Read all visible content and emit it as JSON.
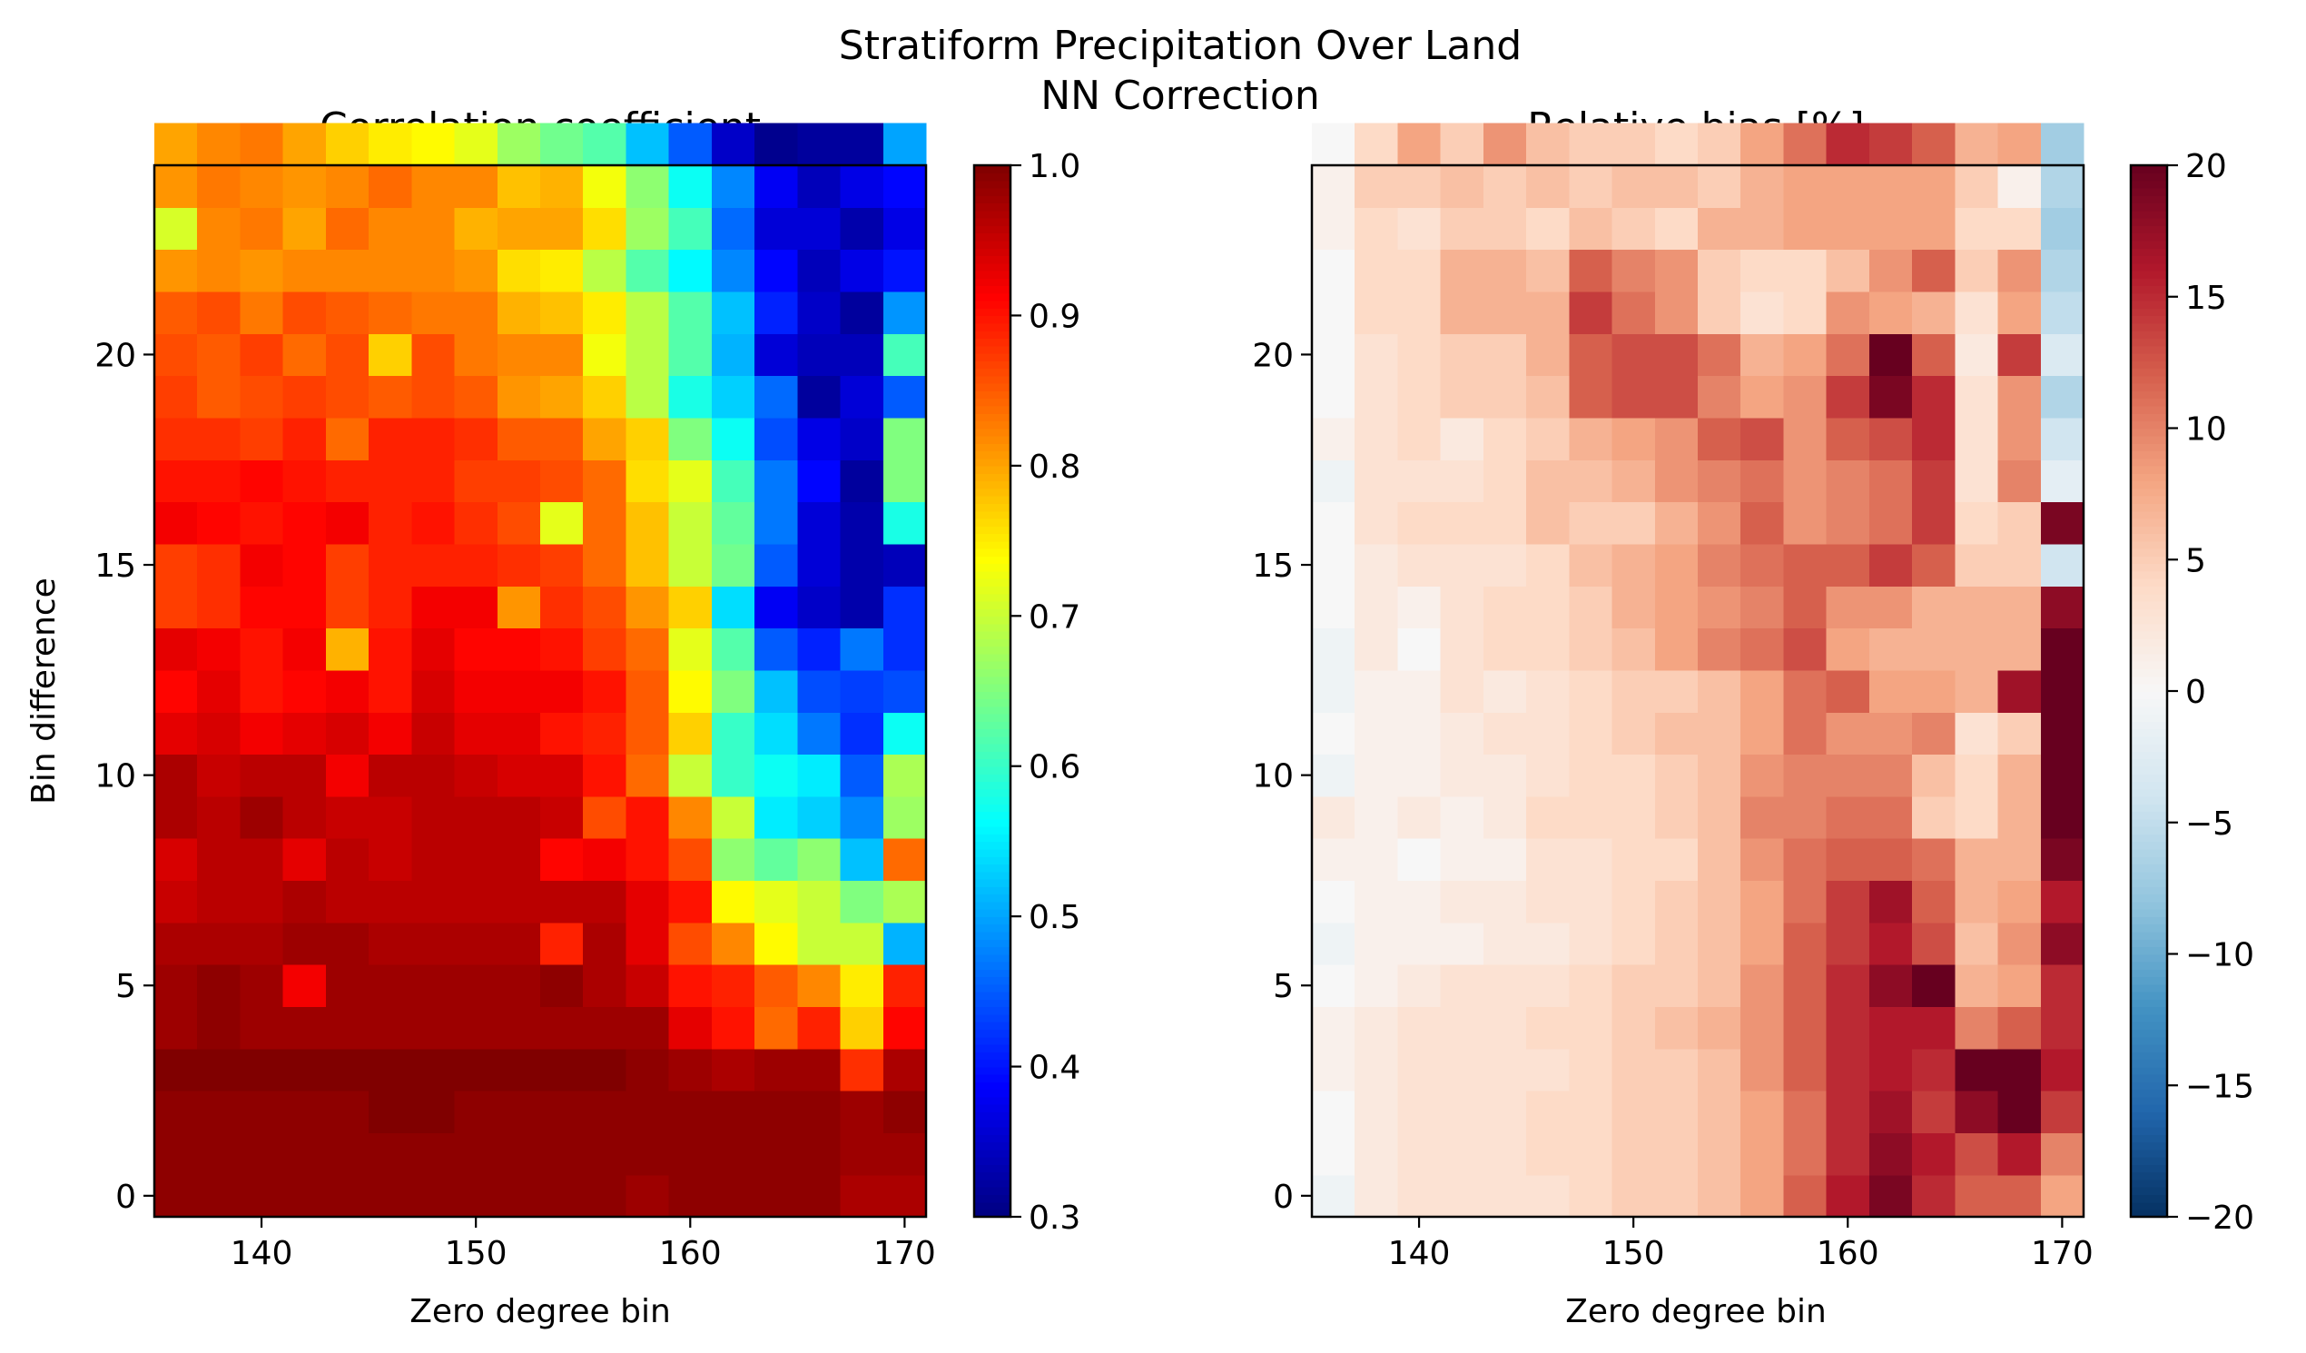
{
  "figure": {
    "title": "Stratiform Precipitation Over Land",
    "subtitle": "NN Correction"
  },
  "chart_data": [
    {
      "type": "heatmap",
      "title": "Correlation coefficient",
      "xlabel": "Zero degree bin",
      "ylabel": "Bin difference",
      "x_start": 136,
      "x_step": 2,
      "y_start": 0,
      "y_step": 1,
      "xlim": [
        135,
        171
      ],
      "ylim": [
        -0.5,
        24.5
      ],
      "xticks": [
        140,
        150,
        160,
        170
      ],
      "yticks": [
        0,
        5,
        10,
        15,
        20
      ],
      "colormap": "jet",
      "colorbar": {
        "vmin": 0.3,
        "vmax": 1.0,
        "ticks": [
          0.3,
          0.4,
          0.5,
          0.6,
          0.7,
          0.8,
          0.9,
          1.0
        ],
        "tick_labels": [
          "0.3",
          "0.4",
          "0.5",
          "0.6",
          "0.7",
          "0.8",
          "0.9",
          "1.0"
        ]
      },
      "z": [
        [
          0.99,
          0.99,
          0.99,
          0.99,
          0.99,
          0.99,
          0.99,
          0.99,
          0.99,
          0.99,
          0.99,
          0.98,
          0.99,
          0.99,
          0.99,
          0.99,
          0.97,
          0.97
        ],
        [
          0.99,
          0.99,
          0.99,
          0.99,
          0.99,
          0.99,
          0.99,
          0.99,
          0.99,
          0.99,
          0.99,
          0.99,
          0.99,
          0.99,
          0.99,
          0.99,
          0.98,
          0.98
        ],
        [
          0.99,
          0.99,
          0.99,
          0.99,
          0.99,
          1.0,
          1.0,
          0.99,
          0.99,
          0.99,
          0.99,
          0.99,
          0.99,
          0.99,
          0.99,
          0.99,
          0.98,
          0.99
        ],
        [
          1.0,
          1.0,
          1.0,
          1.0,
          1.0,
          1.0,
          1.0,
          1.0,
          1.0,
          1.0,
          1.0,
          0.99,
          0.98,
          0.97,
          0.98,
          0.98,
          0.88,
          0.97
        ],
        [
          0.98,
          0.99,
          0.98,
          0.98,
          0.98,
          0.98,
          0.98,
          0.98,
          0.98,
          0.98,
          0.98,
          0.98,
          0.93,
          0.9,
          0.84,
          0.89,
          0.77,
          0.91
        ],
        [
          0.98,
          0.99,
          0.98,
          0.92,
          0.98,
          0.98,
          0.98,
          0.98,
          0.98,
          0.99,
          0.97,
          0.95,
          0.9,
          0.89,
          0.85,
          0.82,
          0.75,
          0.89
        ],
        [
          0.97,
          0.97,
          0.97,
          0.98,
          0.98,
          0.97,
          0.97,
          0.97,
          0.97,
          0.89,
          0.97,
          0.93,
          0.86,
          0.82,
          0.74,
          0.7,
          0.7,
          0.51
        ],
        [
          0.95,
          0.96,
          0.96,
          0.97,
          0.96,
          0.96,
          0.96,
          0.96,
          0.96,
          0.96,
          0.96,
          0.93,
          0.9,
          0.74,
          0.72,
          0.7,
          0.65,
          0.68
        ],
        [
          0.94,
          0.96,
          0.96,
          0.93,
          0.96,
          0.95,
          0.96,
          0.96,
          0.96,
          0.91,
          0.92,
          0.9,
          0.86,
          0.66,
          0.63,
          0.66,
          0.52,
          0.84
        ],
        [
          0.97,
          0.96,
          0.98,
          0.96,
          0.95,
          0.95,
          0.96,
          0.96,
          0.96,
          0.95,
          0.86,
          0.9,
          0.82,
          0.7,
          0.55,
          0.53,
          0.48,
          0.67
        ],
        [
          0.97,
          0.95,
          0.96,
          0.96,
          0.92,
          0.96,
          0.96,
          0.95,
          0.94,
          0.94,
          0.9,
          0.84,
          0.7,
          0.6,
          0.57,
          0.55,
          0.45,
          0.68
        ],
        [
          0.93,
          0.94,
          0.92,
          0.93,
          0.94,
          0.92,
          0.95,
          0.93,
          0.93,
          0.9,
          0.89,
          0.85,
          0.77,
          0.6,
          0.54,
          0.47,
          0.42,
          0.57
        ],
        [
          0.91,
          0.93,
          0.9,
          0.91,
          0.92,
          0.9,
          0.94,
          0.92,
          0.92,
          0.92,
          0.9,
          0.85,
          0.74,
          0.65,
          0.52,
          0.44,
          0.43,
          0.44
        ],
        [
          0.93,
          0.92,
          0.9,
          0.92,
          0.79,
          0.9,
          0.93,
          0.91,
          0.91,
          0.9,
          0.87,
          0.84,
          0.72,
          0.62,
          0.45,
          0.41,
          0.47,
          0.42
        ],
        [
          0.87,
          0.88,
          0.91,
          0.91,
          0.87,
          0.89,
          0.92,
          0.92,
          0.81,
          0.88,
          0.86,
          0.81,
          0.77,
          0.54,
          0.38,
          0.35,
          0.33,
          0.42
        ],
        [
          0.87,
          0.88,
          0.92,
          0.91,
          0.87,
          0.89,
          0.89,
          0.89,
          0.88,
          0.87,
          0.84,
          0.78,
          0.7,
          0.64,
          0.45,
          0.36,
          0.33,
          0.34
        ],
        [
          0.92,
          0.91,
          0.9,
          0.91,
          0.92,
          0.89,
          0.9,
          0.88,
          0.86,
          0.72,
          0.84,
          0.78,
          0.7,
          0.63,
          0.47,
          0.36,
          0.33,
          0.58
        ],
        [
          0.9,
          0.9,
          0.91,
          0.9,
          0.89,
          0.89,
          0.89,
          0.87,
          0.87,
          0.86,
          0.84,
          0.76,
          0.72,
          0.61,
          0.47,
          0.39,
          0.32,
          0.65
        ],
        [
          0.88,
          0.88,
          0.87,
          0.89,
          0.84,
          0.89,
          0.89,
          0.88,
          0.85,
          0.85,
          0.8,
          0.77,
          0.65,
          0.57,
          0.44,
          0.37,
          0.35,
          0.65
        ],
        [
          0.87,
          0.85,
          0.86,
          0.87,
          0.86,
          0.85,
          0.86,
          0.85,
          0.81,
          0.8,
          0.77,
          0.69,
          0.58,
          0.53,
          0.46,
          0.32,
          0.36,
          0.45
        ],
        [
          0.86,
          0.85,
          0.87,
          0.84,
          0.86,
          0.77,
          0.86,
          0.83,
          0.82,
          0.82,
          0.73,
          0.69,
          0.62,
          0.51,
          0.36,
          0.34,
          0.34,
          0.61
        ],
        [
          0.85,
          0.86,
          0.83,
          0.86,
          0.85,
          0.84,
          0.83,
          0.83,
          0.79,
          0.78,
          0.75,
          0.69,
          0.62,
          0.52,
          0.41,
          0.35,
          0.32,
          0.49
        ],
        [
          0.81,
          0.82,
          0.81,
          0.82,
          0.82,
          0.82,
          0.82,
          0.81,
          0.76,
          0.75,
          0.69,
          0.62,
          0.56,
          0.48,
          0.39,
          0.34,
          0.37,
          0.4
        ],
        [
          0.71,
          0.82,
          0.83,
          0.8,
          0.84,
          0.82,
          0.82,
          0.79,
          0.8,
          0.8,
          0.76,
          0.67,
          0.61,
          0.46,
          0.36,
          0.36,
          0.33,
          0.37
        ],
        [
          0.81,
          0.83,
          0.82,
          0.81,
          0.82,
          0.84,
          0.82,
          0.82,
          0.78,
          0.79,
          0.73,
          0.66,
          0.57,
          0.48,
          0.38,
          0.34,
          0.37,
          0.39
        ],
        [
          0.8,
          0.82,
          0.83,
          0.8,
          0.77,
          0.75,
          0.74,
          0.72,
          0.67,
          0.64,
          0.62,
          0.52,
          0.45,
          0.35,
          0.31,
          0.32,
          0.32,
          0.5
        ]
      ]
    },
    {
      "type": "heatmap",
      "title": "Relative bias [%]",
      "xlabel": "Zero degree bin",
      "ylabel": "",
      "x_start": 136,
      "x_step": 2,
      "y_start": 0,
      "y_step": 1,
      "xlim": [
        135,
        171
      ],
      "ylim": [
        -0.5,
        24.5
      ],
      "xticks": [
        140,
        150,
        160,
        170
      ],
      "yticks": [
        0,
        5,
        10,
        15,
        20
      ],
      "colormap": "RdBu_r",
      "colorbar": {
        "vmin": -20,
        "vmax": 20,
        "ticks": [
          -20,
          -15,
          -10,
          -5,
          0,
          5,
          10,
          15,
          20
        ],
        "tick_labels": [
          "−20",
          "−15",
          "−10",
          "−5",
          "0",
          "5",
          "10",
          "15",
          "20"
        ]
      },
      "z": [
        [
          -1,
          2,
          3,
          3,
          3,
          3,
          4,
          5,
          5,
          6,
          8,
          12,
          16,
          19,
          15,
          12,
          12,
          8
        ],
        [
          0,
          2,
          3,
          3,
          3,
          4,
          4,
          5,
          5,
          6,
          8,
          11,
          15,
          18,
          16,
          13,
          16,
          10
        ],
        [
          0,
          2,
          3,
          3,
          3,
          4,
          4,
          5,
          5,
          6,
          8,
          11,
          15,
          17,
          14,
          18,
          22,
          14
        ],
        [
          1,
          2,
          3,
          3,
          3,
          3,
          4,
          5,
          5,
          6,
          9,
          12,
          15,
          16,
          15,
          21,
          25,
          16
        ],
        [
          1,
          2,
          3,
          3,
          3,
          4,
          4,
          5,
          6,
          7,
          9,
          12,
          15,
          16,
          16,
          10,
          12,
          15
        ],
        [
          0,
          1,
          2,
          3,
          3,
          3,
          4,
          5,
          5,
          6,
          9,
          12,
          15,
          18,
          22,
          7,
          8,
          15
        ],
        [
          -1,
          1,
          1,
          1,
          2,
          2,
          3,
          4,
          5,
          6,
          8,
          12,
          14,
          16,
          13,
          6,
          9,
          18
        ],
        [
          0,
          1,
          1,
          2,
          2,
          3,
          3,
          4,
          5,
          6,
          8,
          11,
          14,
          17,
          12,
          7,
          8,
          16
        ],
        [
          1,
          1,
          0,
          1,
          1,
          3,
          3,
          4,
          4,
          6,
          9,
          11,
          12,
          12,
          11,
          7,
          7,
          19
        ],
        [
          2,
          1,
          2,
          1,
          2,
          4,
          4,
          4,
          5,
          6,
          10,
          10,
          11,
          11,
          5,
          4,
          7,
          20
        ],
        [
          -1,
          1,
          1,
          2,
          2,
          3,
          4,
          4,
          5,
          6,
          9,
          10,
          10,
          10,
          6,
          4,
          7,
          20
        ],
        [
          0,
          1,
          1,
          2,
          3,
          3,
          4,
          5,
          6,
          6,
          8,
          11,
          9,
          9,
          10,
          3,
          5,
          20
        ],
        [
          -1,
          1,
          1,
          3,
          2,
          3,
          4,
          5,
          5,
          6,
          8,
          11,
          12,
          8,
          8,
          7,
          17,
          21
        ],
        [
          -1,
          2,
          0,
          3,
          4,
          4,
          5,
          6,
          8,
          10,
          11,
          13,
          8,
          7,
          7,
          7,
          7,
          23
        ],
        [
          0,
          2,
          1,
          3,
          4,
          4,
          5,
          7,
          8,
          9,
          10,
          12,
          9,
          9,
          7,
          7,
          7,
          18
        ],
        [
          0,
          2,
          3,
          3,
          3,
          4,
          6,
          7,
          8,
          10,
          11,
          12,
          12,
          14,
          12,
          5,
          5,
          -4
        ],
        [
          0,
          3,
          4,
          4,
          4,
          6,
          5,
          5,
          7,
          9,
          12,
          9,
          10,
          11,
          14,
          4,
          5,
          19
        ],
        [
          -1,
          3,
          3,
          3,
          4,
          6,
          6,
          7,
          9,
          10,
          11,
          9,
          10,
          11,
          14,
          3,
          10,
          -2
        ],
        [
          1,
          3,
          4,
          2,
          4,
          5,
          7,
          8,
          9,
          12,
          13,
          9,
          12,
          13,
          15,
          3,
          9,
          -4
        ],
        [
          0,
          3,
          4,
          5,
          5,
          6,
          12,
          13,
          13,
          10,
          8,
          9,
          14,
          19,
          15,
          3,
          9,
          -6
        ],
        [
          0,
          3,
          4,
          5,
          5,
          7,
          12,
          13,
          13,
          11,
          7,
          8,
          11,
          22,
          12,
          2,
          14,
          -3
        ],
        [
          0,
          4,
          4,
          7,
          7,
          7,
          14,
          11,
          9,
          5,
          3,
          4,
          9,
          8,
          7,
          3,
          8,
          -5
        ],
        [
          0,
          4,
          4,
          7,
          7,
          6,
          12,
          10,
          9,
          5,
          4,
          4,
          6,
          9,
          12,
          5,
          9,
          -6
        ],
        [
          1,
          4,
          3,
          5,
          5,
          4,
          6,
          5,
          4,
          7,
          7,
          8,
          8,
          8,
          8,
          4,
          4,
          -7
        ],
        [
          1,
          5,
          5,
          6,
          5,
          6,
          5,
          6,
          6,
          5,
          7,
          8,
          8,
          8,
          8,
          5,
          1,
          -6
        ],
        [
          0,
          4,
          8,
          5,
          9,
          6,
          5,
          5,
          4,
          5,
          8,
          11,
          15,
          14,
          12,
          7,
          8,
          -7
        ]
      ]
    }
  ]
}
